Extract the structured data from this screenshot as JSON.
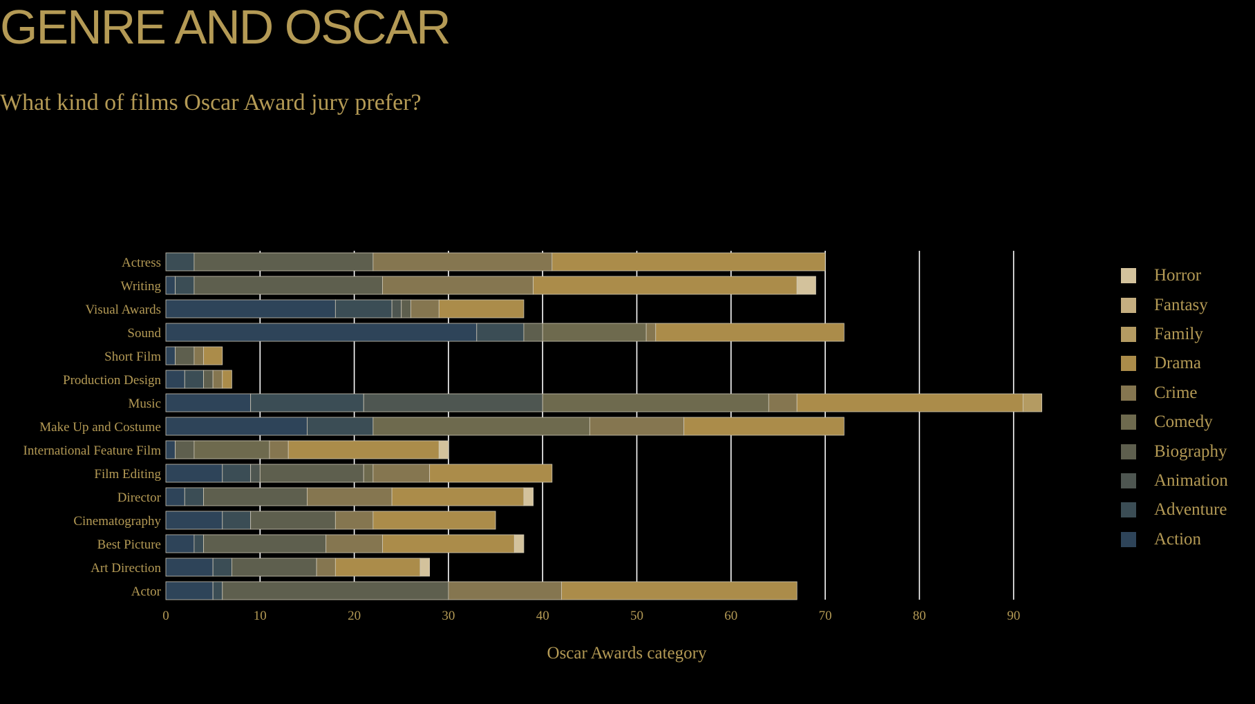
{
  "title": "GENRE AND OSCAR",
  "subtitle": "What kind of films Oscar Award jury prefer?",
  "chart_data": {
    "type": "bar",
    "orientation": "horizontal",
    "stacked": true,
    "xlabel": "Oscar Awards category",
    "xlim": [
      0,
      93
    ],
    "xticks": [
      0,
      10,
      20,
      30,
      40,
      50,
      60,
      70,
      80,
      90
    ],
    "grid": "vertical",
    "legend_position": "right",
    "categories": [
      "Actress",
      "Writing",
      "Visual Awards",
      "Sound",
      "Short Film",
      "Production Design",
      "Music",
      "Make Up and Costume",
      "International Feature Film",
      "Film Editing",
      "Director",
      "Cinematography",
      "Best Picture",
      "Art Direction",
      "Actor"
    ],
    "series": [
      {
        "name": "Action",
        "color": "#2e4459",
        "values": [
          0,
          1,
          18,
          33,
          1,
          2,
          9,
          15,
          1,
          6,
          2,
          6,
          3,
          5,
          5
        ]
      },
      {
        "name": "Adventure",
        "color": "#3b4d55",
        "values": [
          3,
          2,
          6,
          5,
          0,
          2,
          12,
          7,
          0,
          3,
          2,
          3,
          1,
          2,
          1
        ]
      },
      {
        "name": "Animation",
        "color": "#4e5651",
        "values": [
          0,
          0,
          1,
          0,
          0,
          0,
          19,
          0,
          0,
          1,
          0,
          0,
          0,
          0,
          0
        ]
      },
      {
        "name": "Biography",
        "color": "#5e5f4e",
        "values": [
          19,
          20,
          1,
          2,
          2,
          1,
          0,
          0,
          2,
          11,
          11,
          9,
          13,
          9,
          24
        ]
      },
      {
        "name": "Comedy",
        "color": "#6e6a4e",
        "values": [
          0,
          0,
          0,
          11,
          0,
          0,
          24,
          23,
          8,
          1,
          0,
          0,
          0,
          0,
          0
        ]
      },
      {
        "name": "Crime",
        "color": "#857650",
        "values": [
          19,
          16,
          3,
          1,
          1,
          1,
          3,
          10,
          2,
          6,
          9,
          4,
          6,
          2,
          12
        ]
      },
      {
        "name": "Drama",
        "color": "#ab8c4a",
        "values": [
          29,
          28,
          9,
          20,
          2,
          1,
          24,
          17,
          16,
          13,
          14,
          13,
          14,
          9,
          25
        ]
      },
      {
        "name": "Family",
        "color": "#b49b62",
        "values": [
          0,
          0,
          0,
          0,
          0,
          0,
          2,
          0,
          0,
          0,
          0,
          0,
          0,
          0,
          0
        ]
      },
      {
        "name": "Fantasy",
        "color": "#c5ae80",
        "values": [
          0,
          0,
          0,
          0,
          0,
          0,
          0,
          0,
          0,
          0,
          0,
          0,
          0,
          0,
          0
        ]
      },
      {
        "name": "Horror",
        "color": "#d3c29c",
        "values": [
          0,
          2,
          0,
          0,
          0,
          0,
          0,
          0,
          1,
          0,
          1,
          0,
          1,
          1,
          0
        ]
      }
    ]
  }
}
